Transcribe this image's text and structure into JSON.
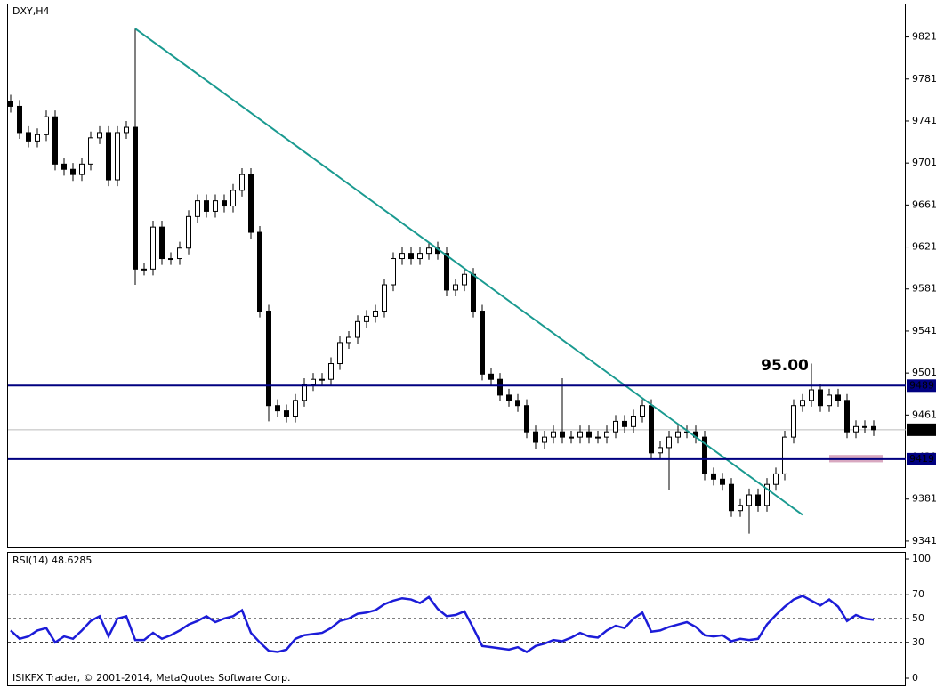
{
  "chart_data": [
    {
      "type": "candlestick",
      "title": "DXY,H4",
      "open": [
        9760,
        9755,
        9730,
        9722,
        9728,
        9745,
        9700,
        9695,
        9690,
        9700,
        9725,
        9730,
        9685,
        9730,
        9735,
        9600,
        9600,
        9640,
        9610,
        9610,
        9620,
        9650,
        9665,
        9655,
        9665,
        9660,
        9675,
        9690,
        9635,
        9560,
        9470,
        9465,
        9460,
        9475,
        9490,
        9495,
        9495,
        9510,
        9530,
        9535,
        9550,
        9555,
        9560,
        9585,
        9610,
        9615,
        9610,
        9615,
        9620,
        9615,
        9580,
        9585,
        9595,
        9560,
        9500,
        9495,
        9480,
        9475,
        9470,
        9445,
        9435,
        9440,
        9445,
        9440,
        9440,
        9445,
        9440,
        9440,
        9445,
        9455,
        9450,
        9460,
        9470,
        9425,
        9430,
        9440,
        9445,
        9445,
        9440,
        9405,
        9400,
        9395,
        9370,
        9375,
        9385,
        9375,
        9395,
        9405,
        9440,
        9470,
        9475,
        9485,
        9470,
        9480,
        9475,
        9445,
        9450,
        9450
      ],
      "high": [
        9766,
        9761,
        9736,
        9734,
        9751,
        9751,
        9706,
        9701,
        9706,
        9731,
        9736,
        9736,
        9736,
        9741,
        9829,
        9606,
        9646,
        9646,
        9616,
        9626,
        9656,
        9671,
        9671,
        9671,
        9671,
        9681,
        9696,
        9696,
        9641,
        9566,
        9476,
        9471,
        9481,
        9496,
        9501,
        9501,
        9516,
        9536,
        9541,
        9556,
        9561,
        9566,
        9591,
        9616,
        9621,
        9621,
        9621,
        9626,
        9626,
        9621,
        9591,
        9601,
        9601,
        9566,
        9506,
        9501,
        9486,
        9481,
        9476,
        9451,
        9446,
        9451,
        9496,
        9446,
        9451,
        9451,
        9446,
        9451,
        9461,
        9461,
        9466,
        9476,
        9476,
        9436,
        9446,
        9451,
        9451,
        9451,
        9446,
        9411,
        9406,
        9401,
        9381,
        9391,
        9391,
        9401,
        9411,
        9446,
        9476,
        9481,
        9510,
        9491,
        9486,
        9486,
        9481,
        9456,
        9456,
        9456
      ],
      "low": [
        9749,
        9724,
        9716,
        9716,
        9722,
        9694,
        9689,
        9684,
        9684,
        9694,
        9719,
        9679,
        9679,
        9724,
        9585,
        9594,
        9594,
        9604,
        9604,
        9604,
        9614,
        9644,
        9649,
        9649,
        9654,
        9654,
        9669,
        9629,
        9554,
        9455,
        9459,
        9454,
        9454,
        9469,
        9484,
        9489,
        9489,
        9504,
        9524,
        9529,
        9544,
        9549,
        9554,
        9579,
        9604,
        9604,
        9604,
        9609,
        9609,
        9574,
        9574,
        9579,
        9554,
        9494,
        9489,
        9474,
        9469,
        9464,
        9439,
        9429,
        9429,
        9434,
        9434,
        9434,
        9434,
        9434,
        9434,
        9434,
        9439,
        9444,
        9444,
        9454,
        9419,
        9419,
        9390,
        9434,
        9439,
        9434,
        9399,
        9394,
        9389,
        9364,
        9364,
        9348,
        9369,
        9369,
        9389,
        9399,
        9434,
        9464,
        9469,
        9464,
        9464,
        9469,
        9439,
        9439,
        9444,
        9441
      ],
      "close": [
        9755,
        9730,
        9722,
        9728,
        9745,
        9700,
        9695,
        9690,
        9700,
        9725,
        9730,
        9685,
        9730,
        9735,
        9600,
        9600,
        9640,
        9610,
        9610,
        9620,
        9650,
        9665,
        9655,
        9665,
        9660,
        9675,
        9690,
        9635,
        9560,
        9470,
        9465,
        9460,
        9475,
        9490,
        9495,
        9495,
        9510,
        9530,
        9535,
        9550,
        9555,
        9560,
        9585,
        9610,
        9615,
        9610,
        9615,
        9620,
        9615,
        9580,
        9585,
        9595,
        9560,
        9500,
        9495,
        9480,
        9475,
        9470,
        9445,
        9435,
        9440,
        9445,
        9440,
        9440,
        9445,
        9440,
        9440,
        9445,
        9455,
        9450,
        9460,
        9470,
        9425,
        9430,
        9440,
        9445,
        9445,
        9440,
        9405,
        9400,
        9395,
        9370,
        9375,
        9385,
        9375,
        9395,
        9405,
        9440,
        9470,
        9475,
        9485,
        9470,
        9480,
        9475,
        9445,
        9450,
        9450,
        9447
      ],
      "ylim": [
        9335,
        9852
      ],
      "yticks": [
        9341,
        9381,
        9421,
        9461,
        9501,
        9541,
        9581,
        9621,
        9661,
        9701,
        9741,
        9781,
        9821
      ],
      "levels": [
        9489,
        9419
      ],
      "level_color": "#000080",
      "price_line": 9447,
      "trendline": {
        "start": [
          14,
          9829
        ],
        "end": [
          89,
          9366
        ],
        "color": "#1a9a90"
      },
      "annotation": {
        "text": "95.00",
        "index": 87,
        "price": 9508,
        "color": "#e0204a"
      },
      "zone": {
        "from": [
          92,
          9416
        ],
        "to": [
          98,
          9423
        ],
        "color": "#d8a8c0"
      }
    },
    {
      "type": "line",
      "title": "RSI(14) 48.6285",
      "values": [
        40,
        33,
        35,
        40,
        42,
        30,
        35,
        33,
        40,
        48,
        52,
        35,
        50,
        52,
        32,
        32,
        38,
        33,
        36,
        40,
        45,
        48,
        52,
        47,
        50,
        52,
        57,
        38,
        30,
        23,
        22,
        24,
        33,
        36,
        37,
        38,
        42,
        48,
        50,
        54,
        55,
        57,
        62,
        65,
        67,
        66,
        63,
        68,
        58,
        52,
        53,
        56,
        42,
        27,
        26,
        25,
        24,
        26,
        22,
        27,
        29,
        32,
        31,
        34,
        38,
        35,
        34,
        40,
        44,
        42,
        50,
        55,
        39,
        40,
        43,
        45,
        47,
        43,
        36,
        35,
        36,
        31,
        33,
        32,
        33,
        45,
        53,
        60,
        66,
        69,
        65,
        61,
        66,
        60,
        48,
        53,
        50,
        49
      ],
      "ylim": [
        0,
        100
      ],
      "yticks": [
        0,
        30,
        50,
        70,
        100
      ],
      "levels": [
        30,
        50,
        70
      ],
      "color": "#1c1cd8"
    }
  ],
  "footer": "ISIKFX Trader, © 2001-2014, MetaQuotes Software Corp."
}
